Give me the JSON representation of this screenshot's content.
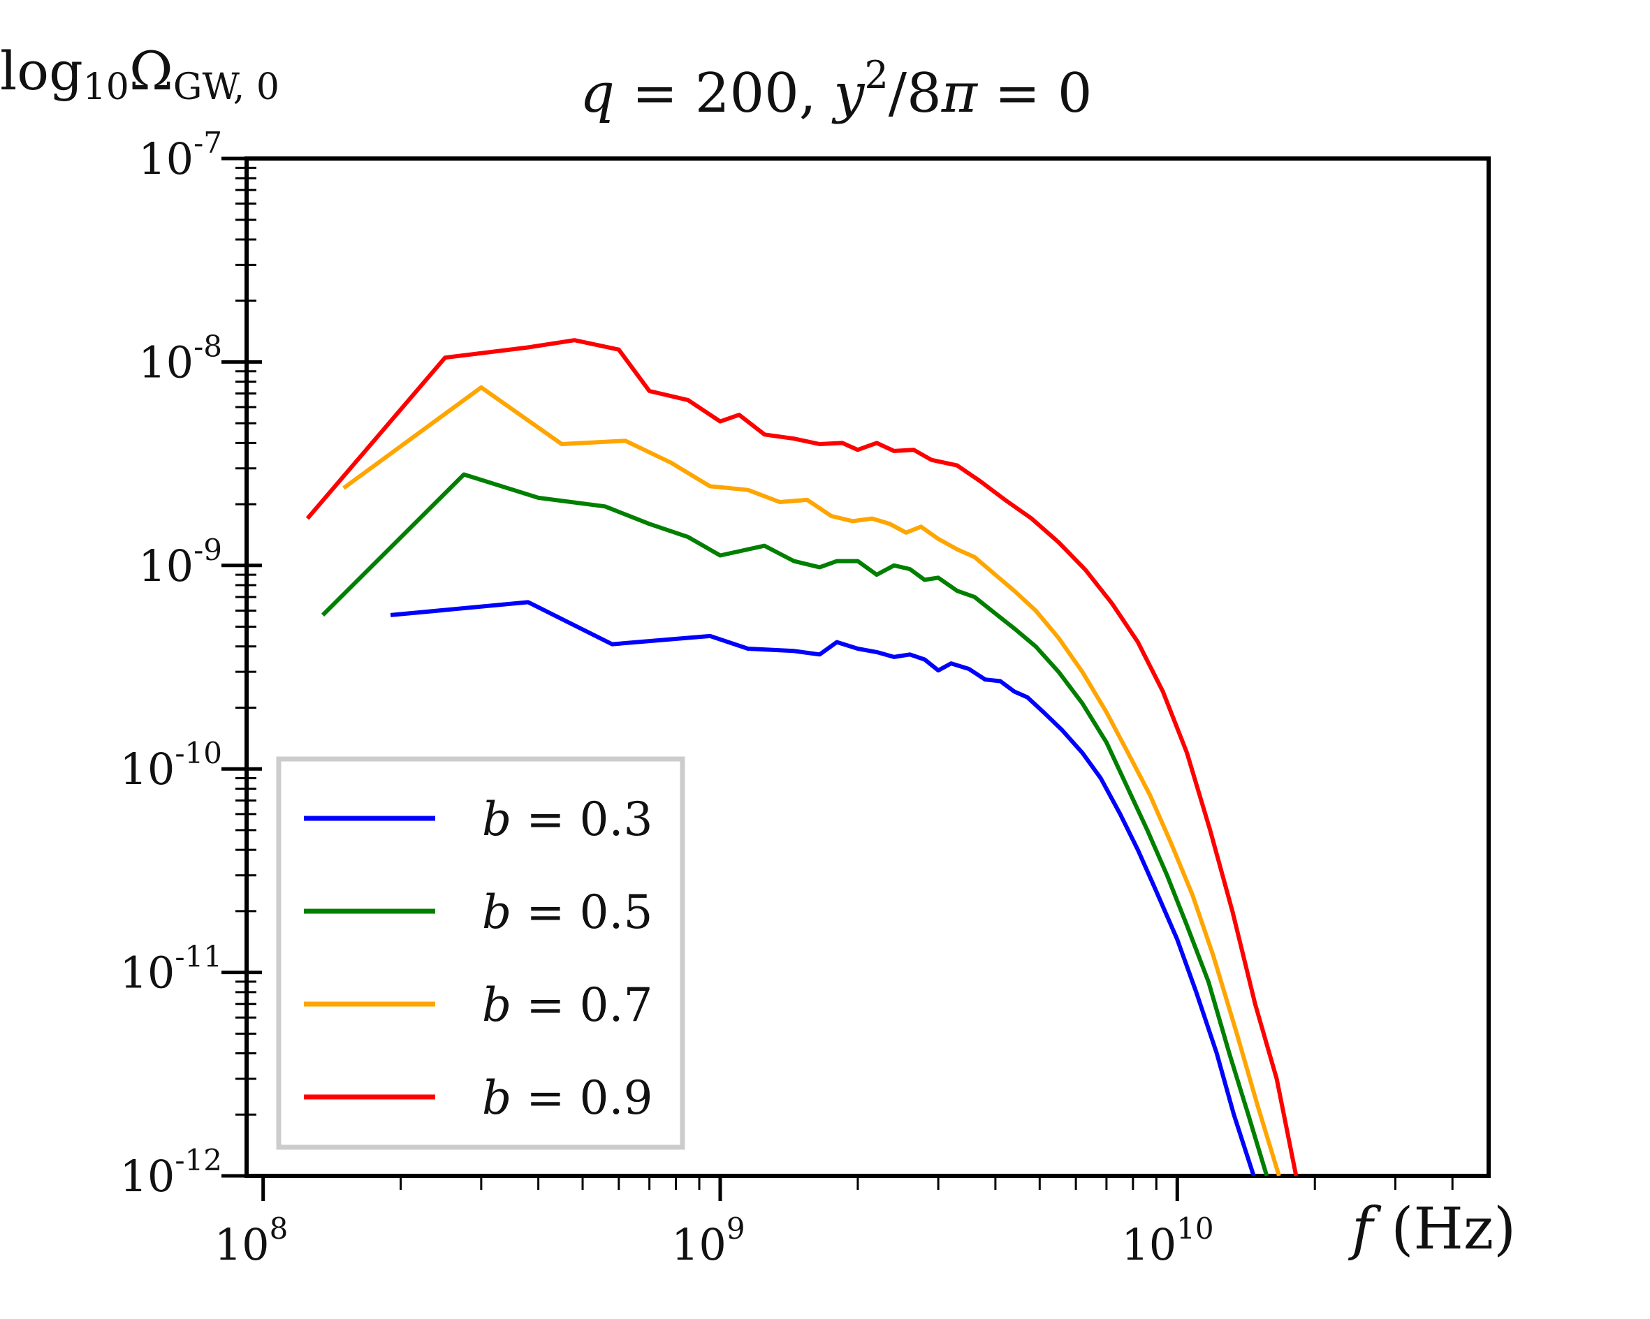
{
  "chart_data": {
    "type": "line",
    "title": "q = 200, y²/8π = 0",
    "title_parts": {
      "q_label": "q",
      "q_eq": " = 200, ",
      "y_label": "y",
      "y_exp": "2",
      "y_rest": "/8",
      "pi": "π",
      "tail": " = 0"
    },
    "ylabel": {
      "main": "log",
      "sub": "10",
      "omega": "Ω",
      "omega_sub": "GW, 0"
    },
    "xlabel": {
      "var": "f",
      "unit": " (Hz)"
    },
    "x_scale": "log",
    "y_scale": "log",
    "xlim": [
      92000000,
      48000000000
    ],
    "ylim": [
      1e-12,
      1e-07
    ],
    "x_ticks": [
      {
        "value": 100000000,
        "base": "10",
        "exp": "8"
      },
      {
        "value": 1000000000,
        "base": "10",
        "exp": "9"
      },
      {
        "value": 10000000000,
        "base": "10",
        "exp": "10"
      }
    ],
    "y_ticks": [
      {
        "value": 1e-07,
        "base": "10",
        "exp": "-7"
      },
      {
        "value": 1e-08,
        "base": "10",
        "exp": "-8"
      },
      {
        "value": 1e-09,
        "base": "10",
        "exp": "-9"
      },
      {
        "value": 1e-10,
        "base": "10",
        "exp": "-10"
      },
      {
        "value": 1e-11,
        "base": "10",
        "exp": "-11"
      },
      {
        "value": 1e-12,
        "base": "10",
        "exp": "-12"
      }
    ],
    "legend_position": "lower-left",
    "series": [
      {
        "name": "b = 0.3",
        "var": "b",
        "eq": " = 0.3",
        "color": "#0000ff",
        "points": [
          [
            190000000,
            5.7e-10
          ],
          [
            380000000,
            6.6e-10
          ],
          [
            580000000,
            4.1e-10
          ],
          [
            950000000,
            4.5e-10
          ],
          [
            1150000000,
            3.9e-10
          ],
          [
            1450000000,
            3.8e-10
          ],
          [
            1650000000,
            3.65e-10
          ],
          [
            1800000000,
            4.2e-10
          ],
          [
            2000000000,
            3.9e-10
          ],
          [
            2200000000,
            3.75e-10
          ],
          [
            2400000000,
            3.55e-10
          ],
          [
            2600000000,
            3.65e-10
          ],
          [
            2800000000,
            3.45e-10
          ],
          [
            3000000000,
            3.05e-10
          ],
          [
            3200000000,
            3.3e-10
          ],
          [
            3500000000,
            3.1e-10
          ],
          [
            3800000000,
            2.75e-10
          ],
          [
            4100000000,
            2.7e-10
          ],
          [
            4400000000,
            2.4e-10
          ],
          [
            4700000000,
            2.25e-10
          ],
          [
            5100000000,
            1.9e-10
          ],
          [
            5600000000,
            1.55e-10
          ],
          [
            6200000000,
            1.2e-10
          ],
          [
            6800000000,
            9e-11
          ],
          [
            7500000000,
            6e-11
          ],
          [
            8200000000,
            4e-11
          ],
          [
            9000000000,
            2.5e-11
          ],
          [
            10000000000,
            1.45e-11
          ],
          [
            11000000000,
            8e-12
          ],
          [
            12200000000,
            4e-12
          ],
          [
            13300000000,
            2e-12
          ],
          [
            14700000000,
            1e-12
          ]
        ]
      },
      {
        "name": "b = 0.5",
        "var": "b",
        "eq": " = 0.5",
        "color": "#007f00",
        "points": [
          [
            135000000,
            5.7e-10
          ],
          [
            275000000,
            2.8e-09
          ],
          [
            400000000,
            2.15e-09
          ],
          [
            560000000,
            1.95e-09
          ],
          [
            700000000,
            1.6e-09
          ],
          [
            850000000,
            1.38e-09
          ],
          [
            1000000000,
            1.12e-09
          ],
          [
            1250000000,
            1.25e-09
          ],
          [
            1450000000,
            1.05e-09
          ],
          [
            1650000000,
            9.8e-10
          ],
          [
            1800000000,
            1.05e-09
          ],
          [
            2000000000,
            1.05e-09
          ],
          [
            2200000000,
            9e-10
          ],
          [
            2400000000,
            1e-09
          ],
          [
            2600000000,
            9.6e-10
          ],
          [
            2800000000,
            8.5e-10
          ],
          [
            3000000000,
            8.7e-10
          ],
          [
            3300000000,
            7.5e-10
          ],
          [
            3600000000,
            7e-10
          ],
          [
            4000000000,
            5.8e-10
          ],
          [
            4400000000,
            4.9e-10
          ],
          [
            4900000000,
            4e-10
          ],
          [
            5500000000,
            3e-10
          ],
          [
            6200000000,
            2.1e-10
          ],
          [
            7000000000,
            1.35e-10
          ],
          [
            7800000000,
            8e-11
          ],
          [
            8600000000,
            5e-11
          ],
          [
            9500000000,
            3e-11
          ],
          [
            10500000000,
            1.7e-11
          ],
          [
            11700000000,
            9e-12
          ],
          [
            13000000000,
            4e-12
          ],
          [
            14300000000,
            2e-12
          ],
          [
            15700000000,
            1e-12
          ]
        ]
      },
      {
        "name": "b = 0.7",
        "var": "b",
        "eq": " = 0.7",
        "color": "#ffa500",
        "points": [
          [
            150000000,
            2.4e-09
          ],
          [
            300000000,
            7.5e-09
          ],
          [
            450000000,
            3.95e-09
          ],
          [
            620000000,
            4.1e-09
          ],
          [
            780000000,
            3.2e-09
          ],
          [
            950000000,
            2.45e-09
          ],
          [
            1150000000,
            2.35e-09
          ],
          [
            1350000000,
            2.05e-09
          ],
          [
            1550000000,
            2.1e-09
          ],
          [
            1750000000,
            1.75e-09
          ],
          [
            1950000000,
            1.65e-09
          ],
          [
            2150000000,
            1.7e-09
          ],
          [
            2350000000,
            1.6e-09
          ],
          [
            2550000000,
            1.45e-09
          ],
          [
            2750000000,
            1.55e-09
          ],
          [
            3000000000,
            1.35e-09
          ],
          [
            3300000000,
            1.2e-09
          ],
          [
            3600000000,
            1.1e-09
          ],
          [
            4000000000,
            9e-10
          ],
          [
            4400000000,
            7.5e-10
          ],
          [
            4900000000,
            6e-10
          ],
          [
            5500000000,
            4.4e-10
          ],
          [
            6200000000,
            3e-10
          ],
          [
            7000000000,
            1.9e-10
          ],
          [
            7800000000,
            1.2e-10
          ],
          [
            8700000000,
            7.5e-11
          ],
          [
            9700000000,
            4.3e-11
          ],
          [
            10800000000,
            2.4e-11
          ],
          [
            12000000000,
            1.2e-11
          ],
          [
            13500000000,
            5e-12
          ],
          [
            15000000000,
            2.2e-12
          ],
          [
            16700000000,
            1e-12
          ]
        ]
      },
      {
        "name": "b = 0.9",
        "var": "b",
        "eq": " = 0.9",
        "color": "#ff0000",
        "points": [
          [
            125000000,
            1.7e-09
          ],
          [
            250000000,
            1.05e-08
          ],
          [
            380000000,
            1.18e-08
          ],
          [
            480000000,
            1.28e-08
          ],
          [
            600000000,
            1.15e-08
          ],
          [
            700000000,
            7.2e-09
          ],
          [
            850000000,
            6.5e-09
          ],
          [
            1000000000,
            5.1e-09
          ],
          [
            1100000000,
            5.5e-09
          ],
          [
            1250000000,
            4.4e-09
          ],
          [
            1450000000,
            4.2e-09
          ],
          [
            1650000000,
            3.95e-09
          ],
          [
            1850000000,
            4e-09
          ],
          [
            2000000000,
            3.7e-09
          ],
          [
            2200000000,
            4e-09
          ],
          [
            2400000000,
            3.65e-09
          ],
          [
            2650000000,
            3.7e-09
          ],
          [
            2900000000,
            3.3e-09
          ],
          [
            3300000000,
            3.1e-09
          ],
          [
            3700000000,
            2.6e-09
          ],
          [
            4200000000,
            2.1e-09
          ],
          [
            4800000000,
            1.7e-09
          ],
          [
            5500000000,
            1.3e-09
          ],
          [
            6300000000,
            9.5e-10
          ],
          [
            7200000000,
            6.5e-10
          ],
          [
            8200000000,
            4.2e-10
          ],
          [
            9300000000,
            2.4e-10
          ],
          [
            10500000000,
            1.2e-10
          ],
          [
            11800000000,
            5e-11
          ],
          [
            13200000000,
            2e-11
          ],
          [
            14800000000,
            7e-12
          ],
          [
            16500000000,
            3e-12
          ],
          [
            18200000000,
            1e-12
          ]
        ]
      }
    ]
  }
}
